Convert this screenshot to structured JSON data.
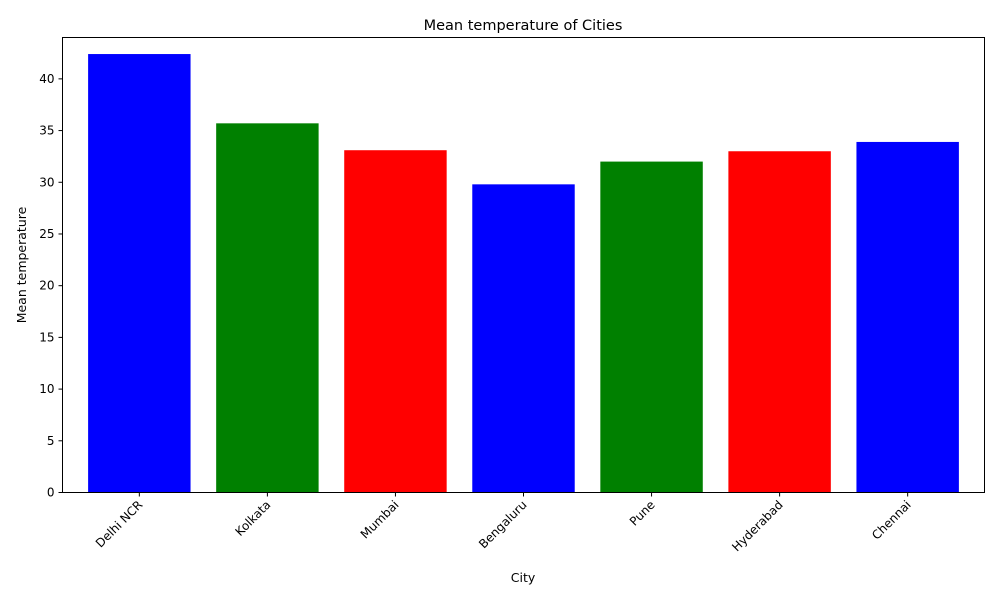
{
  "chart_data": {
    "type": "bar",
    "title": "Mean temperature of Cities",
    "xlabel": "City",
    "ylabel": "Mean temperature",
    "categories": [
      "Delhi NCR",
      "Kolkata",
      "Mumbai",
      "Bengaluru",
      "Pune",
      "Hyderabad",
      "Chennai"
    ],
    "values": [
      42.4,
      35.7,
      33.1,
      29.8,
      32.0,
      33.0,
      33.9
    ],
    "colors": [
      "#0000ff",
      "#008000",
      "#ff0000",
      "#0000ff",
      "#008000",
      "#ff0000",
      "#0000ff"
    ],
    "ylim": [
      0,
      44
    ],
    "yticks": [
      0,
      5,
      10,
      15,
      20,
      25,
      30,
      35,
      40
    ],
    "grid": false,
    "legend": "none"
  }
}
